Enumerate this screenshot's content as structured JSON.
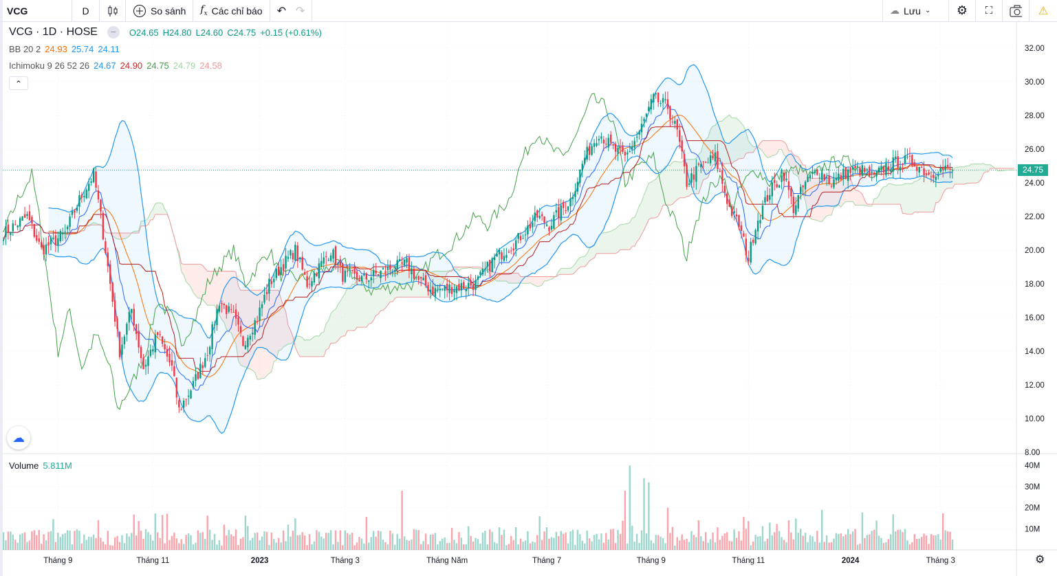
{
  "toolbar": {
    "symbol": "VCG",
    "interval": "D",
    "compare_label": "So sánh",
    "indicators_label": "Các chỉ báo",
    "save_label": "Lưu"
  },
  "legend": {
    "title": "VCG · 1D · HOSE",
    "o": "O24.65",
    "h": "H24.80",
    "l": "L24.60",
    "c": "C24.75",
    "change": "+0.15 (+0.61%)",
    "bb_label": "BB 20 2",
    "bb_basis": "24.93",
    "bb_upper": "25.74",
    "bb_lower": "24.11",
    "ichi_label": "Ichimoku 9 26 52 26",
    "ichi_conv": "24.67",
    "ichi_base": "24.90",
    "ichi_lag": "24.75",
    "ichi_spanA": "24.79",
    "ichi_spanB": "24.58"
  },
  "volume": {
    "label": "Volume",
    "value": "5.811M"
  },
  "current_price": "24.75",
  "colors": {
    "up": "#089981",
    "down": "#f23645",
    "bb": "#2196f3",
    "bb_basis": "#ff6d00",
    "conv": "#2962ff",
    "base": "#b71c1c",
    "lag": "#43a047",
    "spanA": "#a5d6a7",
    "spanB": "#ef9a9a"
  },
  "chart_data": {
    "type": "candlestick",
    "price_axis": {
      "min": 8,
      "max": 32,
      "ticks": [
        "32.00",
        "30.00",
        "28.00",
        "26.00",
        "24.00",
        "22.00",
        "20.00",
        "18.00",
        "16.00",
        "14.00",
        "12.00",
        "10.00",
        "8.00"
      ]
    },
    "volume_axis": {
      "ticks": [
        "40M",
        "30M",
        "20M",
        "10M"
      ]
    },
    "time_labels": [
      {
        "t": 23,
        "label": "Tháng 9"
      },
      {
        "t": 63,
        "label": "Tháng 11"
      },
      {
        "t": 108,
        "label": "2023",
        "bold": true
      },
      {
        "t": 144,
        "label": "Tháng 3"
      },
      {
        "t": 187,
        "label": "Tháng Năm"
      },
      {
        "t": 229,
        "label": "Tháng 7"
      },
      {
        "t": 273,
        "label": "Tháng 9"
      },
      {
        "t": 314,
        "label": "Tháng 11"
      },
      {
        "t": 357,
        "label": "2024",
        "bold": true
      },
      {
        "t": 395,
        "label": "Tháng 3"
      }
    ],
    "days": 401,
    "close_keypoints": [
      [
        0,
        21
      ],
      [
        10,
        22
      ],
      [
        16,
        20
      ],
      [
        26,
        21
      ],
      [
        32,
        23
      ],
      [
        38,
        24.5
      ],
      [
        41,
        22
      ],
      [
        45,
        18
      ],
      [
        49,
        14
      ],
      [
        54,
        16.5
      ],
      [
        59,
        13
      ],
      [
        65,
        15
      ],
      [
        71,
        13
      ],
      [
        74,
        10.5
      ],
      [
        80,
        12
      ],
      [
        86,
        14
      ],
      [
        91,
        17
      ],
      [
        97,
        16
      ],
      [
        101,
        14.5
      ],
      [
        107,
        16
      ],
      [
        112,
        18
      ],
      [
        117,
        19
      ],
      [
        123,
        20
      ],
      [
        128,
        18
      ],
      [
        133,
        19
      ],
      [
        138,
        20
      ],
      [
        143,
        18.5
      ],
      [
        152,
        18.3
      ],
      [
        161,
        18.8
      ],
      [
        170,
        19.2
      ],
      [
        175,
        18.2
      ],
      [
        181,
        17.6
      ],
      [
        190,
        17.8
      ],
      [
        199,
        18
      ],
      [
        207,
        19.5
      ],
      [
        216,
        20.5
      ],
      [
        225,
        22
      ],
      [
        230,
        21.5
      ],
      [
        239,
        23
      ],
      [
        245,
        25.5
      ],
      [
        251,
        27
      ],
      [
        257,
        26
      ],
      [
        262,
        25.5
      ],
      [
        268,
        27
      ],
      [
        274,
        29
      ],
      [
        280,
        28.5
      ],
      [
        284,
        27
      ],
      [
        288,
        24
      ],
      [
        294,
        25
      ],
      [
        300,
        25.5
      ],
      [
        306,
        22.5
      ],
      [
        310,
        21.5
      ],
      [
        314,
        19.5
      ],
      [
        317,
        21.5
      ],
      [
        323,
        23.5
      ],
      [
        329,
        24.5
      ],
      [
        333,
        22.5
      ],
      [
        338,
        24
      ],
      [
        343,
        24.8
      ],
      [
        349,
        24
      ],
      [
        355,
        24.6
      ],
      [
        361,
        24.8
      ],
      [
        367,
        24.3
      ],
      [
        372,
        25
      ],
      [
        378,
        25.3
      ],
      [
        384,
        25.2
      ],
      [
        390,
        24.5
      ],
      [
        394,
        24.8
      ],
      [
        400,
        24.75
      ]
    ],
    "volume_spikes_M": [
      [
        30,
        9
      ],
      [
        120,
        12
      ],
      [
        168,
        28
      ],
      [
        262,
        28
      ],
      [
        264,
        40
      ],
      [
        270,
        34
      ],
      [
        272,
        32
      ],
      [
        280,
        20
      ],
      [
        345,
        19
      ]
    ]
  }
}
